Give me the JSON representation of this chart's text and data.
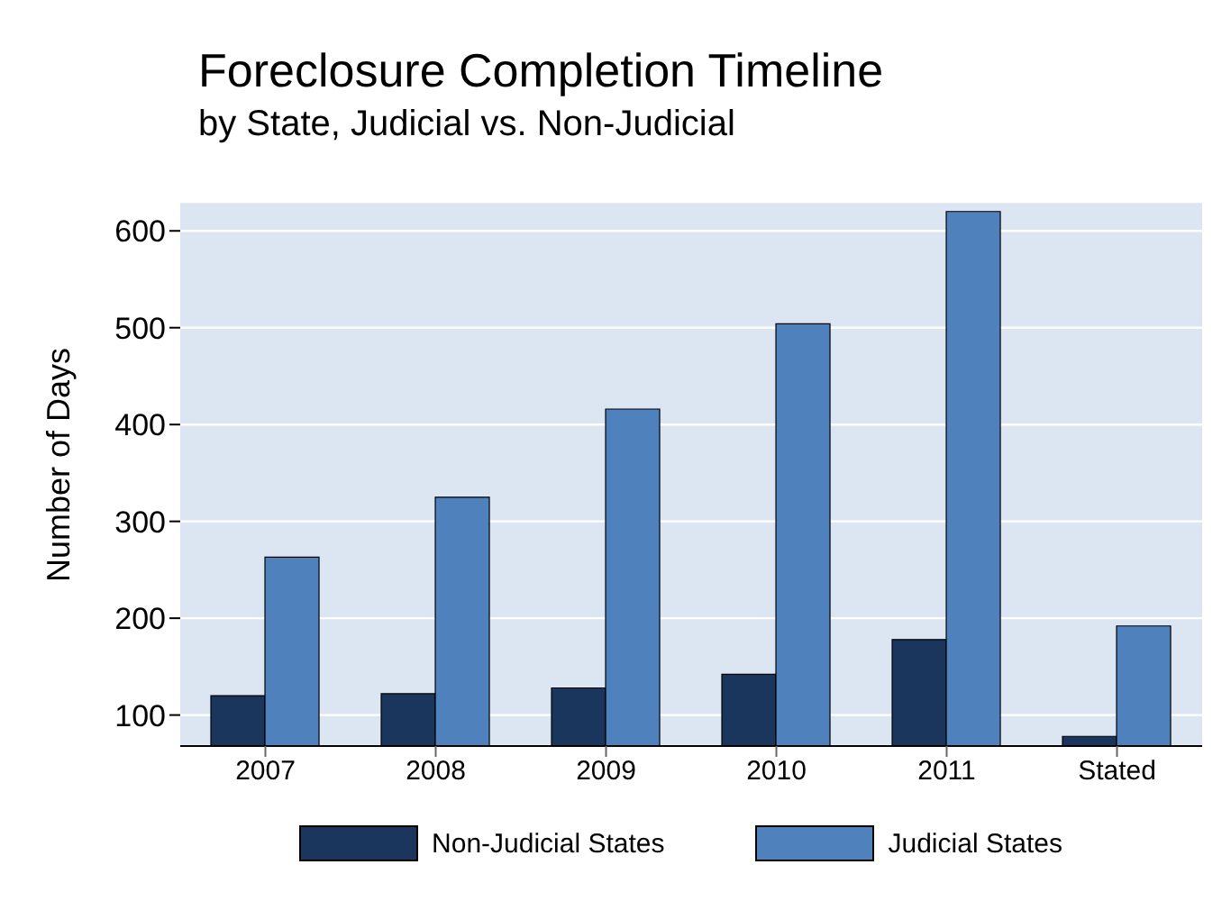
{
  "chart_data": {
    "type": "bar",
    "title": "Foreclosure Completion Timeline",
    "subtitle": "by State, Judicial vs. Non-Judicial",
    "ylabel": "Number of Days",
    "categories": [
      "2007",
      "2008",
      "2009",
      "2010",
      "2011",
      "Stated"
    ],
    "series": [
      {
        "name": "Non-Judicial States",
        "color": "#1b365d",
        "values": [
          120,
          122,
          128,
          142,
          178,
          78
        ]
      },
      {
        "name": "Judicial States",
        "color": "#4f81bd",
        "values": [
          263,
          325,
          416,
          504,
          620,
          192
        ]
      }
    ],
    "ylim": [
      68,
      630
    ],
    "yticks": [
      100,
      200,
      300,
      400,
      500,
      600
    ],
    "grid": "y",
    "legend": "bottom"
  }
}
